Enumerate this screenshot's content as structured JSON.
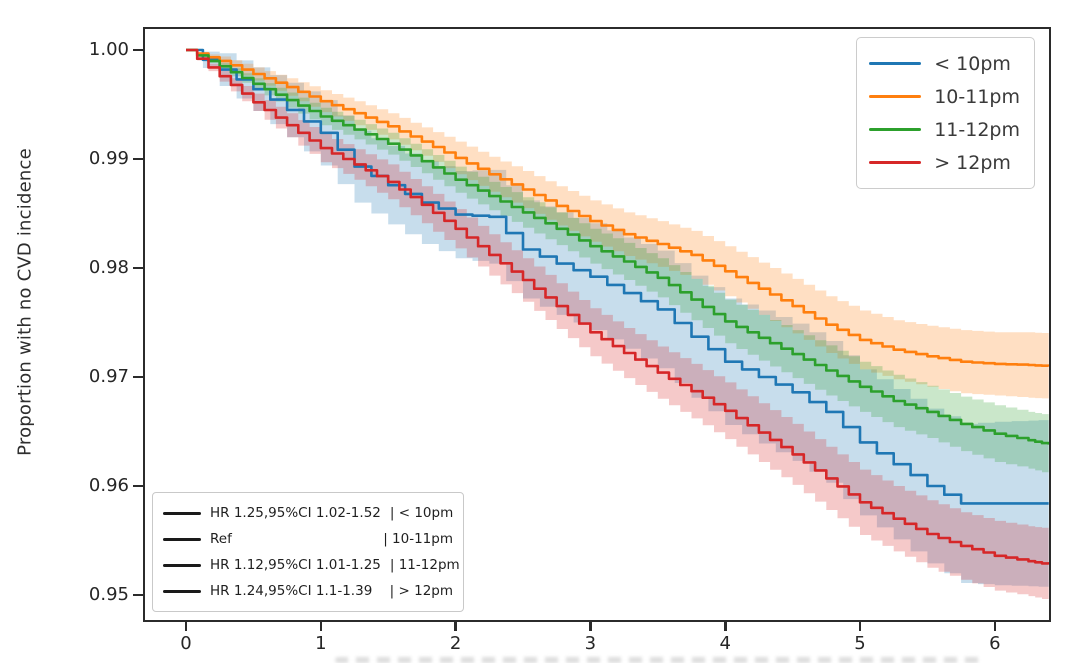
{
  "figure": {
    "title": "",
    "background": "#ffffff",
    "axis_color": "#2b2b2b"
  },
  "axes": {
    "ylabel": "Proportion with no CVD incidence",
    "yticks": [
      {
        "label": "1.00",
        "value": 1.0
      },
      {
        "label": "0.99",
        "value": 0.99
      },
      {
        "label": "0.98",
        "value": 0.98
      },
      {
        "label": "0.97",
        "value": 0.97
      },
      {
        "label": "0.96",
        "value": 0.96
      },
      {
        "label": "0.95",
        "value": 0.95
      }
    ],
    "xticks": [
      {
        "label": "0",
        "value": 0
      },
      {
        "label": "1",
        "value": 1
      },
      {
        "label": "2",
        "value": 2
      },
      {
        "label": "3",
        "value": 3
      },
      {
        "label": "4",
        "value": 4
      },
      {
        "label": "5",
        "value": 5
      },
      {
        "label": "6",
        "value": 6
      }
    ]
  },
  "legend": {
    "position": "upper right",
    "items": [
      {
        "label": "< 10pm",
        "color": "#1f77b4"
      },
      {
        "label": "10-11pm",
        "color": "#ff7f0e"
      },
      {
        "label": "11-12pm",
        "color": "#2ca02c"
      },
      {
        "label": "> 12pm",
        "color": "#d62728"
      }
    ]
  },
  "hr_box": {
    "rows": [
      {
        "hr_text": "HR 1.25,95%CI 1.02-1.52",
        "group": "| < 10pm"
      },
      {
        "hr_text": "Ref",
        "group": "| 10-11pm"
      },
      {
        "hr_text": "HR 1.12,95%CI 1.01-1.25",
        "group": "| 11-12pm"
      },
      {
        "hr_text": "HR 1.24,95%CI 1.1-1.39",
        "group": "| > 12pm"
      }
    ]
  },
  "chart_data": {
    "type": "line",
    "subtype": "kaplan-meier-survival-with-ci-bands",
    "title": "",
    "xlabel": "",
    "ylabel": "Proportion with no CVD incidence",
    "xlim": [
      -0.3,
      6.4
    ],
    "ylim": [
      0.9477,
      1.0018
    ],
    "grid": false,
    "legend_position": "upper right",
    "x": [
      0,
      0.25,
      0.5,
      0.75,
      1,
      1.25,
      1.5,
      1.75,
      2,
      2.25,
      2.5,
      2.75,
      3,
      3.25,
      3.5,
      3.75,
      4,
      4.25,
      4.5,
      4.75,
      5,
      5.25,
      5.5,
      5.75,
      6,
      6.25,
      6.4
    ],
    "series": [
      {
        "id": "lt-10pm",
        "name": "< 10pm",
        "color": "#1f77b4",
        "band_alpha": 0.25,
        "hr_annotation": "HR 1.25,95%CI 1.02-1.52 | < 10pm",
        "values": [
          1.0,
          0.9982,
          0.9964,
          0.9945,
          0.9924,
          0.9893,
          0.9876,
          0.986,
          0.9849,
          0.9847,
          0.9817,
          0.9804,
          0.9792,
          0.9777,
          0.9762,
          0.9737,
          0.9714,
          0.97,
          0.9686,
          0.9668,
          0.964,
          0.962,
          0.96,
          0.9584,
          0.9584,
          0.9584,
          0.9584
        ],
        "ci_halfwidth": [
          0.0,
          0.0015,
          0.002,
          0.0025,
          0.003,
          0.0033,
          0.0036,
          0.0038,
          0.004,
          0.0043,
          0.0045,
          0.0047,
          0.0049,
          0.0051,
          0.0054,
          0.0056,
          0.0058,
          0.0061,
          0.0063,
          0.0065,
          0.0067,
          0.0069,
          0.0071,
          0.0073,
          0.0075,
          0.0076,
          0.0077
        ]
      },
      {
        "id": "10-11pm",
        "name": "10-11pm",
        "color": "#ff7f0e",
        "band_alpha": 0.25,
        "hr_annotation": "Ref | 10-11pm",
        "values": [
          1.0,
          0.999,
          0.9978,
          0.9966,
          0.9953,
          0.9942,
          0.993,
          0.9916,
          0.9901,
          0.9886,
          0.9872,
          0.9857,
          0.9843,
          0.9831,
          0.9822,
          0.9812,
          0.9797,
          0.9781,
          0.9765,
          0.9748,
          0.9734,
          0.9725,
          0.9719,
          0.9714,
          0.9712,
          0.9711,
          0.971
        ],
        "ci_halfwidth": [
          0.0,
          0.0004,
          0.0006,
          0.0008,
          0.001,
          0.0011,
          0.0012,
          0.0013,
          0.0015,
          0.0016,
          0.0017,
          0.0018,
          0.0019,
          0.002,
          0.0021,
          0.0022,
          0.0023,
          0.0024,
          0.0025,
          0.0026,
          0.0027,
          0.0027,
          0.0028,
          0.0029,
          0.0029,
          0.003,
          0.003
        ]
      },
      {
        "id": "11-12pm",
        "name": "11-12pm",
        "color": "#2ca02c",
        "band_alpha": 0.25,
        "hr_annotation": "HR 1.12,95%CI 1.01-1.25 | 11-12pm",
        "values": [
          1.0,
          0.9985,
          0.9969,
          0.9954,
          0.9939,
          0.9927,
          0.9914,
          0.9898,
          0.9881,
          0.9866,
          0.9851,
          0.9836,
          0.982,
          0.9806,
          0.9791,
          0.9771,
          0.9751,
          0.9736,
          0.9721,
          0.9706,
          0.9691,
          0.9678,
          0.9668,
          0.9657,
          0.9648,
          0.9642,
          0.9638
        ],
        "ci_halfwidth": [
          0.0,
          0.0003,
          0.0005,
          0.0007,
          0.0008,
          0.0009,
          0.001,
          0.0011,
          0.0012,
          0.0013,
          0.0014,
          0.0015,
          0.0016,
          0.0017,
          0.0018,
          0.0019,
          0.002,
          0.0021,
          0.0022,
          0.0023,
          0.0023,
          0.0024,
          0.0024,
          0.0025,
          0.0026,
          0.0026,
          0.0027
        ]
      },
      {
        "id": "gt-12pm",
        "name": "> 12pm",
        "color": "#d62728",
        "band_alpha": 0.25,
        "hr_annotation": "HR 1.24,95%CI 1.1-1.39 | > 12pm",
        "values": [
          1.0,
          0.9976,
          0.9952,
          0.9931,
          0.991,
          0.9895,
          0.9879,
          0.9858,
          0.9836,
          0.9812,
          0.9789,
          0.9765,
          0.9741,
          0.9722,
          0.9704,
          0.9687,
          0.9669,
          0.9649,
          0.9629,
          0.9607,
          0.9585,
          0.957,
          0.9556,
          0.9545,
          0.9536,
          0.9531,
          0.9528
        ],
        "ci_halfwidth": [
          0.0,
          0.0005,
          0.0008,
          0.0011,
          0.0013,
          0.0014,
          0.0016,
          0.0017,
          0.0018,
          0.0019,
          0.002,
          0.0021,
          0.0022,
          0.0023,
          0.0024,
          0.0025,
          0.0026,
          0.0027,
          0.0028,
          0.0029,
          0.003,
          0.003,
          0.0031,
          0.0031,
          0.0032,
          0.0032,
          0.0033
        ]
      }
    ]
  }
}
